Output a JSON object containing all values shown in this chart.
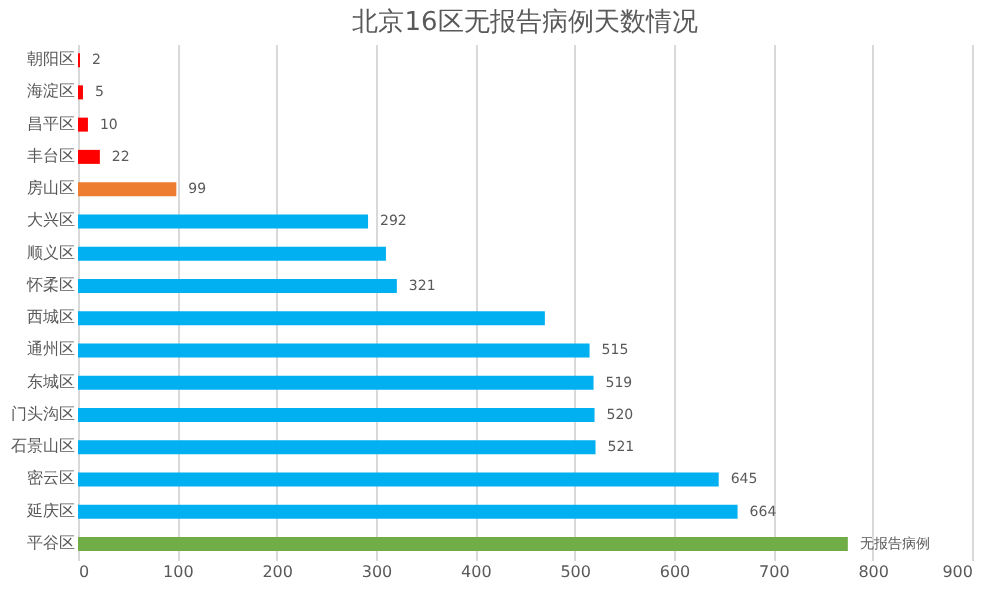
{
  "chart_data": {
    "type": "bar",
    "orientation": "horizontal",
    "title": "北京16区无报告病例天数情况",
    "categories": [
      "朝阳区",
      "海淀区",
      "昌平区",
      "丰台区",
      "房山区",
      "大兴区",
      "顺义区",
      "怀柔区",
      "西城区",
      "通州区",
      "东城区",
      "门头沟区",
      "石景山区",
      "密云区",
      "延庆区",
      "平谷区"
    ],
    "values": [
      2,
      5,
      10,
      22,
      99,
      292,
      310,
      321,
      470,
      515,
      519,
      520,
      521,
      645,
      664,
      775
    ],
    "colors": [
      "#ff0000",
      "#ff0000",
      "#ff0000",
      "#ff0000",
      "#ed7d31",
      "#00b0f0",
      "#00b0f0",
      "#00b0f0",
      "#00b0f0",
      "#00b0f0",
      "#00b0f0",
      "#00b0f0",
      "#00b0f0",
      "#00b0f0",
      "#00b0f0",
      "#70ad47"
    ],
    "value_labels": [
      "2",
      "5",
      "10",
      "22",
      "99",
      "292",
      null,
      "321",
      null,
      "515",
      "519",
      "520",
      "521",
      "645",
      "664",
      "无报告病例"
    ],
    "xlim": [
      0,
      900
    ],
    "xticks": [
      0,
      100,
      200,
      300,
      400,
      500,
      600,
      700,
      800,
      900
    ],
    "grid": "x",
    "legend": false
  }
}
